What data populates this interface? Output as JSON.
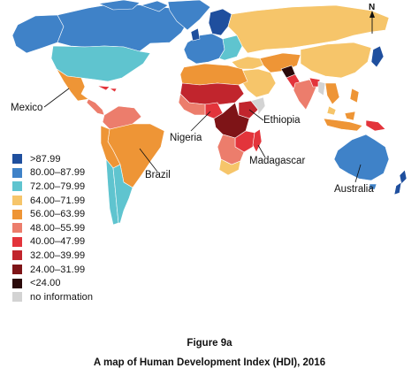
{
  "map": {
    "north_label": "N",
    "legend": [
      {
        "label": ">87.99",
        "color": "#1f4f9e"
      },
      {
        "label": "80.00–87.99",
        "color": "#3f82c8"
      },
      {
        "label": "72.00–79.99",
        "color": "#5fc4cf"
      },
      {
        "label": "64.00–71.99",
        "color": "#f6c56a"
      },
      {
        "label": "56.00–63.99",
        "color": "#ee9536"
      },
      {
        "label": "48.00–55.99",
        "color": "#ec7d6c"
      },
      {
        "label": "40.00–47.99",
        "color": "#e3343b"
      },
      {
        "label": "32.00–39.99",
        "color": "#c1252d"
      },
      {
        "label": "24.00–31.99",
        "color": "#7e1417"
      },
      {
        "label": "<24.00",
        "color": "#2b0a0a"
      },
      {
        "label": "no information",
        "color": "#d3d3d3"
      }
    ],
    "labels": {
      "mexico": "Mexico",
      "brazil": "Brazil",
      "nigeria": "Nigeria",
      "ethiopia": "Ethiopia",
      "madagascar": "Madagascar",
      "australia": "Australia"
    }
  },
  "caption": {
    "figure_number": "Figure 9a",
    "title": "A map of Human Development Index (HDI), 2016"
  }
}
